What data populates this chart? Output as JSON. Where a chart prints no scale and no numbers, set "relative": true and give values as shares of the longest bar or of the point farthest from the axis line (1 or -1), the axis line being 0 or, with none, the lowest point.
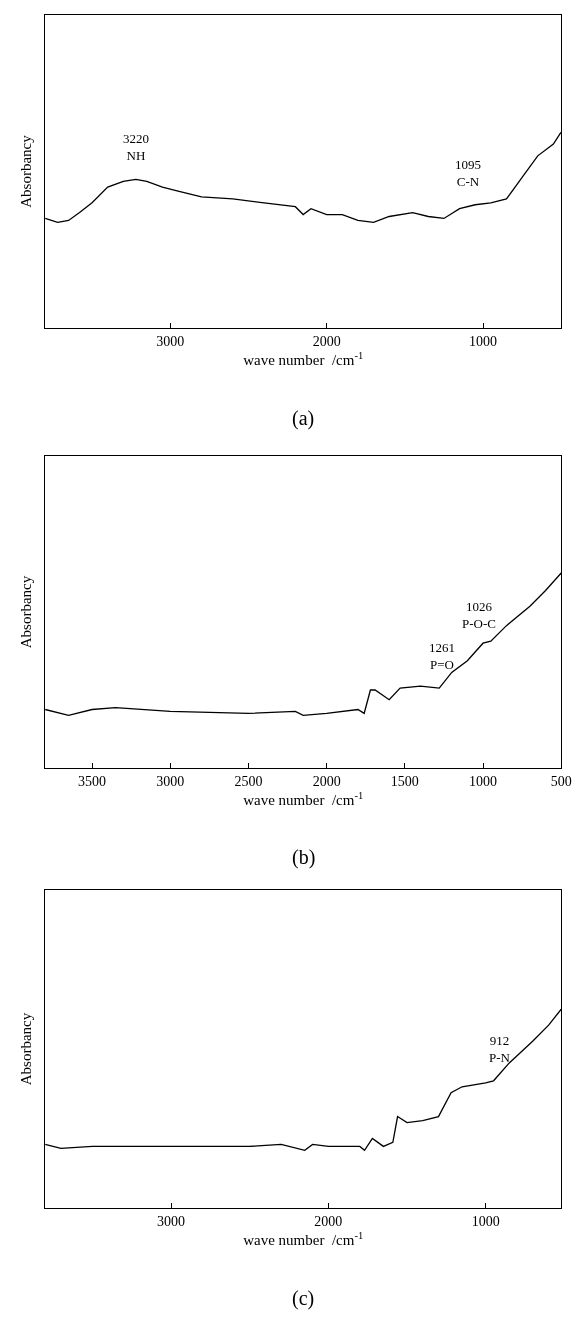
{
  "chart_data": [
    {
      "type": "line",
      "title": "(a)",
      "xlabel": "wave number  /cm$^{-1}$",
      "ylabel": "Absorbancy",
      "relative": true,
      "xlim": [
        3800,
        500
      ],
      "xticks": [
        3000,
        2000,
        1000
      ],
      "x": [
        3800,
        3720,
        3650,
        3580,
        3500,
        3400,
        3300,
        3220,
        3150,
        3050,
        2950,
        2800,
        2600,
        2400,
        2200,
        2150,
        2100,
        2000,
        1900,
        1800,
        1700,
        1600,
        1450,
        1350,
        1250,
        1150,
        1050,
        950,
        850,
        750,
        650,
        550,
        502
      ],
      "series": [
        {
          "color": "#000000",
          "values": [
            0.56,
            0.54,
            0.55,
            0.59,
            0.64,
            0.72,
            0.75,
            0.76,
            0.75,
            0.72,
            0.7,
            0.67,
            0.66,
            0.64,
            0.62,
            0.58,
            0.61,
            0.58,
            0.58,
            0.55,
            0.54,
            0.57,
            0.59,
            0.57,
            0.56,
            0.61,
            0.63,
            0.64,
            0.66,
            0.77,
            0.88,
            0.94,
            1.0
          ]
        }
      ],
      "annotations": [
        {
          "text": "3220\nNH",
          "x": 3220,
          "y": 0.76
        },
        {
          "text": "1095\nC-N",
          "x": 1095,
          "y": 0.63
        }
      ]
    },
    {
      "type": "line",
      "title": "(b)",
      "xlabel": "wave number  /cm$^{-1}$",
      "ylabel": "Absorbancy",
      "relative": true,
      "xlim": [
        3800,
        500
      ],
      "xticks": [
        3500,
        3000,
        2500,
        2000,
        1500,
        1000,
        500
      ],
      "x": [
        3800,
        3650,
        3500,
        3350,
        3000,
        2500,
        2200,
        2150,
        2000,
        1800,
        1760,
        1720,
        1690,
        1600,
        1530,
        1400,
        1280,
        1200,
        1100,
        1000,
        950,
        850,
        700,
        600,
        500
      ],
      "series": [
        {
          "color": "#000000",
          "values": [
            0.3,
            0.27,
            0.3,
            0.31,
            0.29,
            0.28,
            0.29,
            0.27,
            0.28,
            0.3,
            0.28,
            0.4,
            0.4,
            0.35,
            0.41,
            0.42,
            0.41,
            0.49,
            0.55,
            0.64,
            0.65,
            0.73,
            0.83,
            0.91,
            1.0
          ]
        }
      ],
      "annotations": [
        {
          "text": "1261\nP=O",
          "x": 1261,
          "y": 0.41
        },
        {
          "text": "1026\nP-O-C",
          "x": 1026,
          "y": 0.62
        }
      ]
    },
    {
      "type": "line",
      "title": "(c)",
      "xlabel": "wave number  /cm$^{-1}$",
      "ylabel": "Absorbancy",
      "relative": true,
      "xlim": [
        3800,
        520
      ],
      "xticks": [
        3000,
        2000,
        1000
      ],
      "x": [
        3800,
        3700,
        3500,
        3000,
        2500,
        2300,
        2150,
        2100,
        2000,
        1800,
        1770,
        1720,
        1650,
        1590,
        1560,
        1500,
        1400,
        1300,
        1220,
        1150,
        1000,
        950,
        850,
        700,
        600,
        520
      ],
      "series": [
        {
          "color": "#000000",
          "values": [
            0.32,
            0.3,
            0.31,
            0.31,
            0.31,
            0.32,
            0.29,
            0.32,
            0.31,
            0.31,
            0.29,
            0.35,
            0.31,
            0.33,
            0.46,
            0.43,
            0.44,
            0.46,
            0.58,
            0.61,
            0.63,
            0.64,
            0.73,
            0.84,
            0.92,
            1.0
          ]
        }
      ],
      "annotations": [
        {
          "text": "912\nP-N",
          "x": 912,
          "y": 0.64
        }
      ]
    }
  ]
}
